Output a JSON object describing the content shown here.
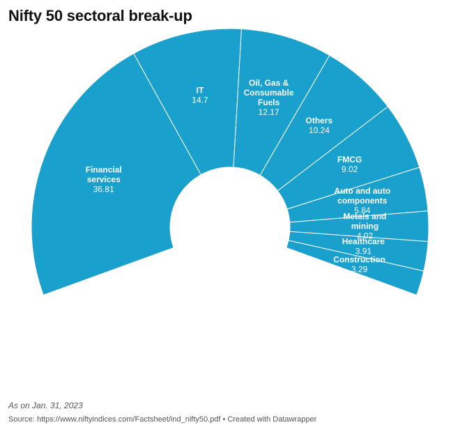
{
  "title": "Nifty 50 sectoral break-up",
  "footer": {
    "note": "As on Jan. 31, 2023",
    "source": "Source: https://www.niftyindices.com/Factsheet/ind_nifty50.pdf • Created with Datawrapper"
  },
  "colors": {
    "slice": "#1aa0cc",
    "separator": "#ffffff",
    "label": "#ffffff"
  },
  "chart_data": {
    "type": "pie",
    "variant": "semi-donut",
    "categories": [
      "Financial services",
      "IT",
      "Oil, Gas & Consumable Fuels",
      "Others",
      "FMCG",
      "Auto and auto components",
      "Metals and mining",
      "Healthcare",
      "Construction"
    ],
    "label_lines": [
      [
        "Financial",
        "services"
      ],
      [
        "IT"
      ],
      [
        "Oil, Gas &",
        "Consumable",
        "Fuels"
      ],
      [
        "Others"
      ],
      [
        "FMCG"
      ],
      [
        "Auto and auto",
        "components"
      ],
      [
        "Metals and",
        "mining"
      ],
      [
        "Healthcare"
      ],
      [
        "Construction"
      ]
    ],
    "value_labels": [
      "36.81",
      "14.7",
      "12.17",
      "10.24",
      "9.02",
      "5.84",
      "4.02",
      "3.91",
      "3.29"
    ],
    "values": [
      36.81,
      14.7,
      12.17,
      10.24,
      9.02,
      5.84,
      4.02,
      3.91,
      3.29
    ]
  }
}
